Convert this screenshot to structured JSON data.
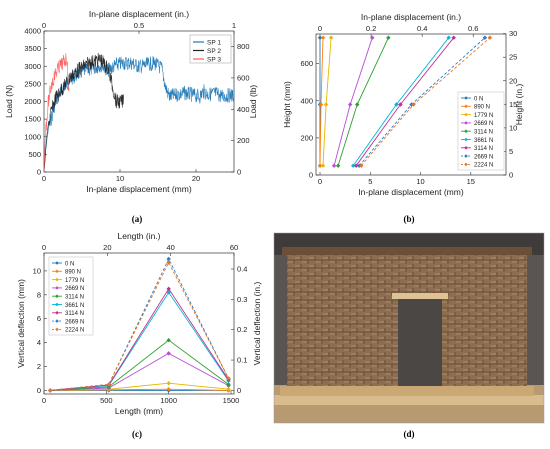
{
  "figure": {
    "labels": [
      "(a)",
      "(b)",
      "(c)",
      "(d)"
    ]
  },
  "chart_data": [
    {
      "id": "a",
      "type": "line",
      "title": "",
      "xlabel": "In-plane displacement (mm)",
      "x2label": "In-plane displacement (in.)",
      "ylabel": "Load (N)",
      "y2label": "Load (lb)",
      "xlim": [
        0,
        25
      ],
      "ylim": [
        0,
        4000
      ],
      "x2lim": [
        0,
        1
      ],
      "y2lim": [
        0,
        899
      ],
      "xticks": [
        "0",
        "10",
        "20"
      ],
      "xtick_values": [
        0,
        10,
        20
      ],
      "yticks": [
        "0",
        "500",
        "1000",
        "1500",
        "2000",
        "2500",
        "3000",
        "3500",
        "4000"
      ],
      "x2ticks": [
        "0",
        "0.5",
        "1"
      ],
      "y2ticks": [
        "0",
        "200",
        "400",
        "600",
        "800"
      ],
      "legend_position": "top-right",
      "series": [
        {
          "name": "SP 1",
          "color": "#1f77b4",
          "x": [
            0,
            0.3,
            0.8,
            1.5,
            2.5,
            3.5,
            4.5,
            5.5,
            6.5,
            7.5,
            8.5,
            9.5,
            10.5,
            11.5,
            12.5,
            13.5,
            14.5,
            15.5,
            16.0,
            16.5,
            17.5,
            18.5,
            19.5,
            20.5,
            21.0,
            21.6,
            22.5,
            23.5,
            24.5,
            25.0
          ],
          "y": [
            0,
            800,
            1600,
            2200,
            2600,
            2850,
            3000,
            3100,
            3150,
            3250,
            3100,
            3250,
            3300,
            3300,
            3200,
            3250,
            3300,
            3150,
            2600,
            2350,
            2400,
            2450,
            2400,
            2350,
            2500,
            2400,
            2450,
            2350,
            2400,
            2350
          ]
        },
        {
          "name": "SP 2",
          "color": "#222222",
          "x": [
            0,
            0.3,
            0.8,
            1.5,
            2.5,
            3.5,
            4.5,
            5.5,
            6.5,
            7.5,
            8.5,
            9.5,
            10.5
          ],
          "y": [
            0,
            900,
            1800,
            2300,
            2600,
            2900,
            3100,
            3250,
            3350,
            3400,
            3100,
            2200,
            2200
          ]
        },
        {
          "name": "SP 3",
          "color": "#ff5a5a",
          "x": [
            0,
            0.2,
            0.5,
            1.0,
            1.5,
            2.0,
            2.5,
            3.0,
            3.3
          ],
          "y": [
            0,
            1200,
            2100,
            2700,
            3000,
            3200,
            3300,
            3450,
            2300
          ]
        }
      ]
    },
    {
      "id": "b",
      "type": "line",
      "title": "",
      "xlabel": "In-plane displacement (mm)",
      "x2label": "In-plane displacement (in.)",
      "ylabel": "Height (mm)",
      "y2label": "Height (in.)",
      "xlim": [
        -0.4,
        18.5
      ],
      "ylim": [
        0,
        760
      ],
      "x2ticks": [
        "0",
        "0.2",
        "0.4",
        "0.6"
      ],
      "x2tick_values": [
        0,
        5.08,
        10.16,
        15.24
      ],
      "xticks": [
        "0",
        "5",
        "10",
        "15"
      ],
      "xtick_values": [
        0,
        5,
        10,
        15
      ],
      "yticks": [
        "0",
        "200",
        "400",
        "600"
      ],
      "ytick_values": [
        0,
        200,
        400,
        600
      ],
      "y2ticks": [
        "0",
        "5",
        "10",
        "15",
        "20",
        "25",
        "30"
      ],
      "y2tick_values": [
        0,
        127,
        254,
        381,
        508,
        635,
        762
      ],
      "legend_position": "right",
      "heights": [
        50,
        380,
        740
      ],
      "series": [
        {
          "name": "0 N",
          "color": "#1f77b4",
          "style": "solid",
          "x": [
            0,
            0,
            0
          ]
        },
        {
          "name": "890 N",
          "color": "#ff7f0e",
          "style": "solid",
          "x": [
            0,
            0.1,
            0.3
          ]
        },
        {
          "name": "1779 N",
          "color": "#e5b800",
          "style": "solid",
          "x": [
            0.3,
            0.6,
            1.1
          ]
        },
        {
          "name": "2669 N",
          "color": "#b84dd8",
          "style": "solid",
          "x": [
            1.4,
            3.0,
            5.2
          ]
        },
        {
          "name": "3114 N",
          "color": "#2ca02c",
          "style": "solid",
          "x": [
            1.8,
            3.7,
            6.8
          ]
        },
        {
          "name": "3661 N",
          "color": "#00b7d9",
          "style": "solid",
          "x": [
            3.3,
            7.6,
            12.8
          ]
        },
        {
          "name": "3114 N",
          "color": "#c0308c",
          "style": "solid",
          "x": [
            3.6,
            8.0,
            13.3
          ]
        },
        {
          "name": "2669 N",
          "color": "#2b7bd1",
          "style": "dashed",
          "x": [
            3.9,
            9.1,
            16.4
          ]
        },
        {
          "name": "2224 N",
          "color": "#e07a2a",
          "style": "dashed",
          "x": [
            4.1,
            9.3,
            16.9
          ]
        }
      ]
    },
    {
      "id": "c",
      "type": "line",
      "title": "",
      "xlabel": "Length (mm)",
      "x2label": "Length (in.)",
      "ylabel": "Vertical deflection (mm)",
      "y2label": "Vertical deflection (in.)",
      "xlim": [
        0,
        1524
      ],
      "ylim": [
        -0.3,
        11.5
      ],
      "xticks": [
        "0",
        "500",
        "1000",
        "1500"
      ],
      "xtick_values": [
        0,
        500,
        1000,
        1500
      ],
      "x2ticks": [
        "0",
        "20",
        "40",
        "60"
      ],
      "x2tick_values": [
        0,
        508,
        1016,
        1524
      ],
      "yticks": [
        "0",
        "2",
        "4",
        "6",
        "8",
        "10"
      ],
      "ytick_values": [
        0,
        2,
        4,
        6,
        8,
        10
      ],
      "y2ticks": [
        "0",
        "0.1",
        "0.2",
        "0.3",
        "0.4"
      ],
      "y2tick_values": [
        0,
        2.54,
        5.08,
        7.62,
        10.16
      ],
      "legend_position": "top-left",
      "x_positions": [
        50,
        520,
        1000,
        1480
      ],
      "series": [
        {
          "name": "0 N",
          "color": "#1f77b4",
          "style": "solid",
          "y": [
            0,
            0,
            0,
            0
          ]
        },
        {
          "name": "890 N",
          "color": "#ff7f0e",
          "style": "solid",
          "y": [
            0,
            0.05,
            0.1,
            0
          ]
        },
        {
          "name": "1779 N",
          "color": "#e5b800",
          "style": "solid",
          "y": [
            0,
            0.1,
            0.6,
            0.1
          ]
        },
        {
          "name": "2669 N",
          "color": "#b84dd8",
          "style": "solid",
          "y": [
            0,
            0.2,
            3.1,
            0.4
          ]
        },
        {
          "name": "3114 N",
          "color": "#2ca02c",
          "style": "solid",
          "y": [
            0,
            0.3,
            4.2,
            0.5
          ]
        },
        {
          "name": "3661 N",
          "color": "#00b7d9",
          "style": "solid",
          "y": [
            0,
            0.4,
            8.2,
            0.8
          ]
        },
        {
          "name": "3114 N",
          "color": "#c0308c",
          "style": "solid",
          "y": [
            0,
            0.45,
            8.5,
            0.9
          ]
        },
        {
          "name": "2669 N",
          "color": "#2b7bd1",
          "style": "dashed",
          "y": [
            0,
            0.5,
            11.0,
            1.0
          ]
        },
        {
          "name": "2224 N",
          "color": "#e07a2a",
          "style": "dashed",
          "y": [
            0,
            0.5,
            10.7,
            1.0
          ]
        }
      ]
    }
  ]
}
